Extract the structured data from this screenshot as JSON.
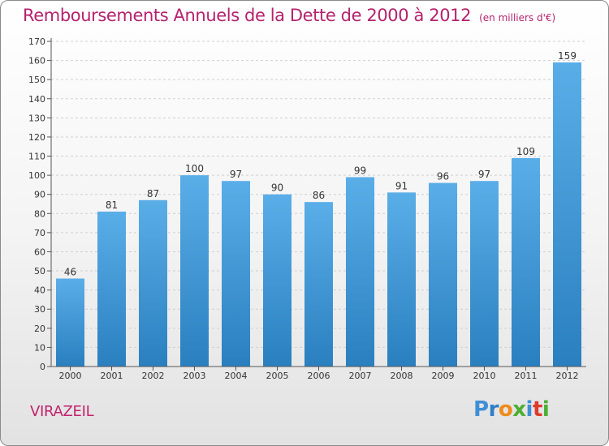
{
  "header": {
    "title": "Remboursements Annuels de la Dette de 2000 à 2012",
    "subtitle": "(en milliers d'€)"
  },
  "footer": {
    "commune": "VIRAZEIL",
    "logo_letters": [
      "P",
      "r",
      "o",
      "x",
      "i",
      "t",
      "i"
    ],
    "logo_colors": [
      "#3f8fd6",
      "#2f7fc8",
      "#f08a1c",
      "#4caf32",
      "#3f8fd6",
      "#e03a2a",
      "#4caf32"
    ]
  },
  "chart_data": {
    "type": "bar",
    "title": "Remboursements Annuels de la Dette de 2000 à 2012",
    "categories": [
      "2000",
      "2001",
      "2002",
      "2003",
      "2004",
      "2005",
      "2006",
      "2007",
      "2008",
      "2009",
      "2010",
      "2011",
      "2012"
    ],
    "values": [
      46,
      81,
      87,
      100,
      97,
      90,
      86,
      99,
      91,
      96,
      97,
      109,
      159
    ],
    "xlabel": "",
    "ylabel": "",
    "ylim": [
      0,
      170
    ],
    "yticks": [
      0,
      10,
      20,
      30,
      40,
      50,
      60,
      70,
      80,
      90,
      100,
      110,
      120,
      130,
      140,
      150,
      160,
      170
    ],
    "grid": true,
    "colors": {
      "bar_top": "#5aaee8",
      "bar_bottom": "#2a7fbf",
      "grid": "#cfcfcf",
      "axis": "#555555",
      "label": "#333333"
    }
  }
}
